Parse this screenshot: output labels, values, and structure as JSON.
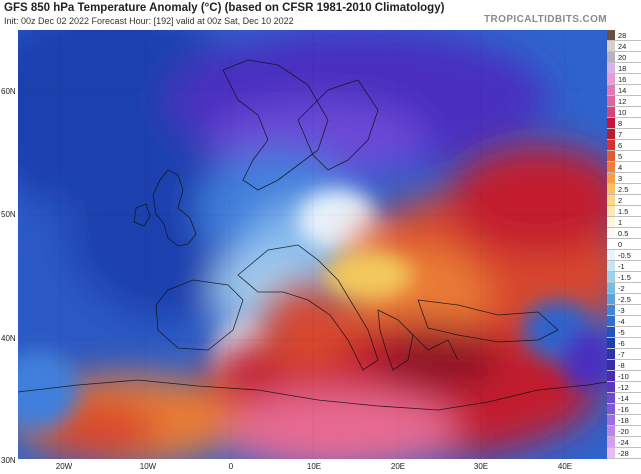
{
  "header": {
    "title": "GFS 850 hPa Temperature Anomaly (°C) (based on CFSR 1981-2010 Climatology)",
    "subtitle": "Init: 00z Dec 02 2022   Forecast Hour: [192]   valid at 00z Sat, Dec 10 2022",
    "brand": "TROPICALTIDBITS.COM"
  },
  "map": {
    "latitude_labels": [
      "60N",
      "50N",
      "40N",
      "30N"
    ],
    "longitude_labels": [
      "20W",
      "10W",
      "0",
      "10E",
      "20E",
      "30E",
      "40E"
    ],
    "colors": {
      "deep_purple": "#4a2fc0",
      "purple": "#6a4ad6",
      "dark_blue": "#1d3fae",
      "blue": "#2f63cc",
      "mid_blue": "#3f7fdc",
      "light_blue": "#7fb6ee",
      "pale_blue": "#cde3f7",
      "near_zero": "#f4f1ef",
      "yellow": "#f3c85c",
      "orange": "#e97b35",
      "red_orange": "#d8462e",
      "red": "#c21f2d",
      "dark_red": "#8e1626",
      "pink": "#e76b92"
    }
  },
  "colorbar": {
    "labels": [
      "28",
      "24",
      "20",
      "18",
      "16",
      "14",
      "12",
      "10",
      "8",
      "7",
      "6",
      "5",
      "4",
      "3",
      "2.5",
      "2",
      "1.5",
      "1",
      "0.5",
      "0",
      "-0.5",
      "-1",
      "-1.5",
      "-2",
      "-2.5",
      "-3",
      "-4",
      "-5",
      "-6",
      "-7",
      "-8",
      "-10",
      "-12",
      "-14",
      "-16",
      "-18",
      "-20",
      "-24",
      "-28"
    ],
    "colors": [
      "#6b4f3f",
      "#d8d0c8",
      "#b7b1c2",
      "#d8b3e6",
      "#ea9bd4",
      "#e377b9",
      "#d9669d",
      "#d6457a",
      "#c8123a",
      "#b91b2f",
      "#d8302f",
      "#e45a35",
      "#ee7f3b",
      "#f3a048",
      "#f7c266",
      "#fbd889",
      "#fde9b3",
      "#fff4dc",
      "#fdf8f4",
      "#ffffff",
      "#e7f4fa",
      "#c5e6f4",
      "#9dd4ec",
      "#76bce5",
      "#5aa3dd",
      "#3f87d3",
      "#2f6ecb",
      "#2353be",
      "#1e3eaa",
      "#2d32a6",
      "#3a2ba9",
      "#4c2cb4",
      "#5a37c0",
      "#6d49cc",
      "#8058d7",
      "#9a6fe0",
      "#b985e9",
      "#d39ef0",
      "#ecbaf5"
    ]
  }
}
